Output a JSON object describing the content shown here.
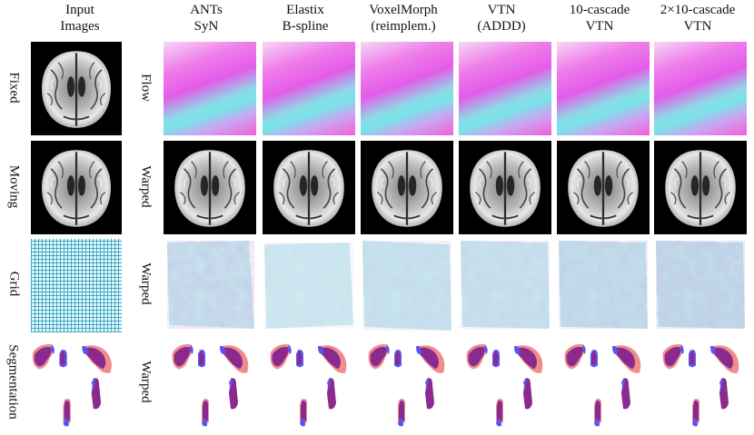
{
  "columns": [
    {
      "line1": "Input",
      "line2": "Images"
    },
    {
      "line1": "ANTs",
      "line2": "SyN"
    },
    {
      "line1": "Elastix",
      "line2": "B-spline"
    },
    {
      "line1": "VoxelMorph",
      "line2": "(reimplem.)"
    },
    {
      "line1": "VTN",
      "line2": "(ADDD)"
    },
    {
      "line1": "10-cascade",
      "line2": "VTN"
    },
    {
      "line1": "2×10-cascade",
      "line2": "VTN"
    }
  ],
  "input_row_labels": [
    "Fixed",
    "Moving",
    "Grid",
    "Segmentation"
  ],
  "output_row_labels": [
    "Flow",
    "Warped",
    "Warped",
    "Warped"
  ],
  "colors": {
    "seg_overlap": "#8a2a8f",
    "seg_fixed": "#f08c8c",
    "seg_moving": "#5a55f0",
    "grid_line": "#28a0be",
    "flow_magenta": "#e45ce8",
    "flow_cyan": "#78e4e8"
  }
}
